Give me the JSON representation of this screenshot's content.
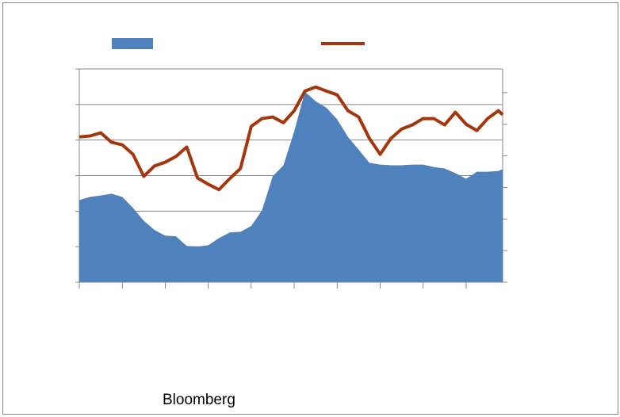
{
  "chart_data": {
    "type": "area-line",
    "source": "Bloomberg",
    "x": [
      0,
      0.25,
      0.5,
      0.75,
      1,
      1.25,
      1.5,
      1.75,
      2,
      2.25,
      2.5,
      2.75,
      3,
      3.25,
      3.5,
      3.75,
      4,
      4.25,
      4.5,
      4.75,
      5,
      5.25,
      5.5,
      5.75,
      6,
      6.25,
      6.5,
      6.75,
      7,
      7.25,
      7.5,
      7.75,
      8,
      8.25,
      8.5,
      8.75,
      9,
      9.25,
      9.5,
      9.75,
      9.85
    ],
    "xlim": [
      0,
      9.85
    ],
    "xticks": [
      0,
      1,
      2,
      3,
      4,
      5,
      6,
      7,
      8,
      9
    ],
    "ylim": [
      0,
      6
    ],
    "yticks": [
      0,
      1,
      2,
      3,
      4,
      5,
      6
    ],
    "y2lim": [
      0,
      6.75
    ],
    "y2ticks": [
      0,
      1,
      2,
      3,
      4,
      5,
      6
    ],
    "grid": true,
    "series": [
      {
        "type": "area",
        "color": "#4f81bd",
        "values": [
          2.31,
          2.4,
          2.44,
          2.49,
          2.4,
          2.09,
          1.73,
          1.47,
          1.31,
          1.29,
          1.02,
          1.0,
          1.04,
          1.24,
          1.4,
          1.42,
          1.58,
          2.02,
          2.98,
          3.29,
          4.24,
          5.36,
          5.09,
          4.91,
          4.58,
          4.09,
          3.73,
          3.36,
          3.31,
          3.29,
          3.29,
          3.31,
          3.31,
          3.24,
          3.2,
          3.07,
          2.91,
          3.11,
          3.11,
          3.13,
          3.18
        ]
      },
      {
        "type": "line",
        "color": "#a5360b",
        "axis": "y2",
        "values": [
          4.6,
          4.63,
          4.73,
          4.43,
          4.35,
          4.05,
          3.35,
          3.68,
          3.8,
          3.98,
          4.28,
          3.3,
          3.1,
          2.93,
          3.28,
          3.6,
          4.93,
          5.18,
          5.23,
          5.05,
          5.43,
          6.05,
          6.18,
          6.05,
          5.93,
          5.43,
          5.23,
          4.55,
          4.05,
          4.55,
          4.85,
          4.98,
          5.18,
          5.18,
          4.98,
          5.38,
          5.0,
          4.8,
          5.18,
          5.43,
          5.3
        ]
      }
    ]
  }
}
